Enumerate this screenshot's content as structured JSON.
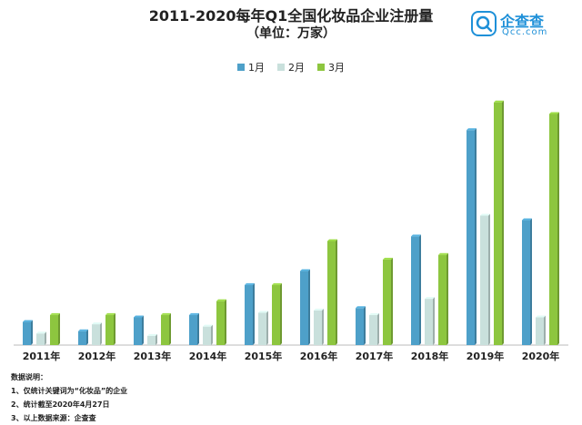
{
  "header": {
    "title": "2011-2020每年Q1全国化妆品企业注册量",
    "subtitle": "（单位：万家）"
  },
  "brand": {
    "name": "企查查",
    "domain": "Qcc.com",
    "logo_icon": "magnifier-q-icon",
    "color": "#1e90d8"
  },
  "notes": {
    "heading": "数据说明：",
    "items": [
      "1、仅统计关键词为“化妆品”的企业",
      "2、统计截至2020年4月27日",
      "3、以上数据来源：企查查"
    ]
  },
  "chart_data": {
    "type": "bar",
    "title": "2011-2020每年Q1全国化妆品企业注册量",
    "ylabel": "",
    "categories": [
      "2011年",
      "2012年",
      "2013年",
      "2014年",
      "2015年",
      "2016年",
      "2017年",
      "2018年",
      "2019年",
      "2020年"
    ],
    "ylim": [
      0,
      1.1
    ],
    "series": [
      {
        "name": "1月",
        "color": "#4ea0c9",
        "values": [
          0.1,
          0.06,
          0.12,
          0.13,
          0.26,
          0.32,
          0.16,
          0.47,
          0.93,
          0.54
        ]
      },
      {
        "name": "2月",
        "color": "#c9e0dc",
        "values": [
          0.05,
          0.09,
          0.04,
          0.08,
          0.14,
          0.15,
          0.13,
          0.2,
          0.56,
          0.12
        ]
      },
      {
        "name": "3月",
        "color": "#8dc63f",
        "values": [
          0.13,
          0.13,
          0.13,
          0.19,
          0.26,
          0.45,
          0.37,
          0.39,
          1.05,
          1.0
        ]
      }
    ],
    "grid": false,
    "legend_position": "top-center"
  }
}
